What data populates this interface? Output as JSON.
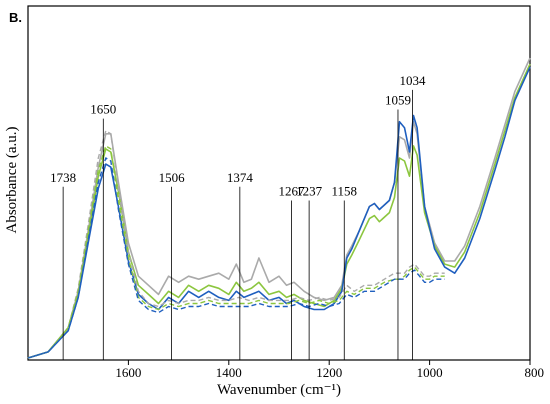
{
  "chart_data": {
    "type": "line",
    "panel_label": "B.",
    "xlabel": "Wavenumber (cm⁻¹)",
    "ylabel": "Absorbance (a.u.)",
    "x_axis_reversed": true,
    "xlim": [
      1800,
      800
    ],
    "ylim": [
      0,
      1.0
    ],
    "x_ticks": [
      1600,
      1400,
      1200,
      1000,
      800
    ],
    "x_tick_labels": [
      "1600",
      "1400",
      "1200",
      "1000",
      "800"
    ],
    "y_ticks_shown": false,
    "grid": false,
    "legend": "none",
    "annotations": [
      {
        "label": "1738",
        "x": 1730,
        "y_top": 0.565
      },
      {
        "label": "1650",
        "x": 1650,
        "y_top": 0.79
      },
      {
        "label": "1506",
        "x": 1514,
        "y_top": 0.565
      },
      {
        "label": "1374",
        "x": 1378,
        "y_top": 0.565
      },
      {
        "label": "1267",
        "x": 1275,
        "y_top": 0.52
      },
      {
        "label": "1237",
        "x": 1240,
        "y_top": 0.52
      },
      {
        "label": "1158",
        "x": 1170,
        "y_top": 0.52
      },
      {
        "label": "1059",
        "x": 1063,
        "y_top": 0.82
      },
      {
        "label": "1034",
        "x": 1034,
        "y_top": 0.885
      }
    ],
    "series": [
      {
        "color": "#aaaaaa",
        "dash": "solid",
        "x": [
          1800,
          1760,
          1720,
          1700,
          1680,
          1660,
          1645,
          1635,
          1620,
          1600,
          1580,
          1560,
          1540,
          1520,
          1500,
          1480,
          1460,
          1440,
          1420,
          1400,
          1385,
          1370,
          1355,
          1340,
          1320,
          1300,
          1285,
          1270,
          1250,
          1230,
          1210,
          1190,
          1175,
          1165,
          1155,
          1140,
          1120,
          1110,
          1100,
          1080,
          1070,
          1060,
          1050,
          1040,
          1032,
          1025,
          1010,
          990,
          970,
          950,
          930,
          900,
          870,
          850,
          830,
          800
        ],
        "y": [
          0.0,
          0.02,
          0.1,
          0.22,
          0.42,
          0.63,
          0.74,
          0.74,
          0.58,
          0.38,
          0.27,
          0.24,
          0.21,
          0.27,
          0.25,
          0.27,
          0.26,
          0.27,
          0.28,
          0.26,
          0.31,
          0.25,
          0.26,
          0.33,
          0.25,
          0.27,
          0.24,
          0.25,
          0.22,
          0.2,
          0.19,
          0.2,
          0.24,
          0.34,
          0.37,
          0.42,
          0.5,
          0.51,
          0.49,
          0.52,
          0.58,
          0.73,
          0.72,
          0.66,
          0.78,
          0.74,
          0.5,
          0.38,
          0.32,
          0.32,
          0.37,
          0.5,
          0.66,
          0.77,
          0.88,
          0.99
        ]
      },
      {
        "color": "#8cc63f",
        "dash": "solid",
        "x": [
          1800,
          1760,
          1720,
          1700,
          1680,
          1660,
          1645,
          1635,
          1620,
          1600,
          1580,
          1560,
          1540,
          1520,
          1500,
          1480,
          1460,
          1440,
          1420,
          1400,
          1385,
          1370,
          1355,
          1340,
          1320,
          1300,
          1285,
          1270,
          1250,
          1230,
          1210,
          1190,
          1175,
          1165,
          1155,
          1140,
          1120,
          1110,
          1100,
          1080,
          1070,
          1060,
          1050,
          1040,
          1032,
          1025,
          1010,
          990,
          970,
          950,
          930,
          900,
          870,
          850,
          830,
          800
        ],
        "y": [
          0.0,
          0.02,
          0.1,
          0.21,
          0.4,
          0.6,
          0.69,
          0.68,
          0.55,
          0.35,
          0.24,
          0.21,
          0.18,
          0.22,
          0.2,
          0.24,
          0.22,
          0.24,
          0.23,
          0.21,
          0.25,
          0.22,
          0.23,
          0.25,
          0.21,
          0.22,
          0.2,
          0.21,
          0.19,
          0.18,
          0.17,
          0.19,
          0.23,
          0.31,
          0.34,
          0.39,
          0.46,
          0.47,
          0.45,
          0.48,
          0.53,
          0.66,
          0.65,
          0.6,
          0.7,
          0.67,
          0.48,
          0.37,
          0.31,
          0.3,
          0.35,
          0.48,
          0.64,
          0.75,
          0.86,
          0.97
        ]
      },
      {
        "color": "#1f5fbf",
        "dash": "solid",
        "x": [
          1800,
          1760,
          1720,
          1700,
          1680,
          1660,
          1645,
          1635,
          1620,
          1600,
          1580,
          1560,
          1540,
          1520,
          1500,
          1480,
          1460,
          1440,
          1420,
          1400,
          1385,
          1370,
          1355,
          1340,
          1320,
          1300,
          1285,
          1270,
          1250,
          1230,
          1210,
          1190,
          1175,
          1165,
          1155,
          1140,
          1120,
          1110,
          1100,
          1080,
          1070,
          1060,
          1050,
          1040,
          1032,
          1025,
          1010,
          990,
          970,
          950,
          930,
          900,
          870,
          850,
          830,
          800
        ],
        "y": [
          0.0,
          0.02,
          0.09,
          0.2,
          0.38,
          0.56,
          0.64,
          0.63,
          0.5,
          0.32,
          0.21,
          0.18,
          0.16,
          0.2,
          0.18,
          0.22,
          0.2,
          0.22,
          0.2,
          0.19,
          0.22,
          0.2,
          0.21,
          0.22,
          0.19,
          0.2,
          0.18,
          0.19,
          0.17,
          0.16,
          0.16,
          0.18,
          0.22,
          0.33,
          0.36,
          0.42,
          0.5,
          0.51,
          0.49,
          0.52,
          0.58,
          0.78,
          0.76,
          0.68,
          0.8,
          0.76,
          0.5,
          0.36,
          0.3,
          0.28,
          0.33,
          0.46,
          0.62,
          0.73,
          0.85,
          0.96
        ]
      },
      {
        "color": "#aaaaaa",
        "dash": "dashed",
        "x": [
          1800,
          1760,
          1720,
          1700,
          1680,
          1660,
          1645,
          1635,
          1620,
          1600,
          1580,
          1560,
          1540,
          1520,
          1500,
          1480,
          1460,
          1440,
          1420,
          1400,
          1380,
          1360,
          1340,
          1320,
          1300,
          1280,
          1260,
          1240,
          1220,
          1200,
          1180,
          1165,
          1150,
          1130,
          1110,
          1090,
          1070,
          1060,
          1050,
          1040,
          1030,
          1020,
          1010,
          1000,
          990,
          980,
          970
        ],
        "y": [
          0.0,
          0.02,
          0.1,
          0.23,
          0.44,
          0.66,
          0.75,
          0.74,
          0.56,
          0.35,
          0.22,
          0.18,
          0.17,
          0.19,
          0.18,
          0.19,
          0.19,
          0.2,
          0.19,
          0.19,
          0.2,
          0.19,
          0.2,
          0.19,
          0.19,
          0.19,
          0.2,
          0.19,
          0.2,
          0.19,
          0.2,
          0.24,
          0.22,
          0.24,
          0.24,
          0.26,
          0.28,
          0.28,
          0.28,
          0.3,
          0.31,
          0.29,
          0.27,
          0.27,
          0.28,
          0.28,
          0.28
        ]
      },
      {
        "color": "#8cc63f",
        "dash": "dashed",
        "x": [
          1800,
          1760,
          1720,
          1700,
          1680,
          1660,
          1645,
          1635,
          1620,
          1600,
          1580,
          1560,
          1540,
          1520,
          1500,
          1480,
          1460,
          1440,
          1420,
          1400,
          1380,
          1360,
          1340,
          1320,
          1300,
          1280,
          1260,
          1240,
          1220,
          1200,
          1180,
          1165,
          1150,
          1130,
          1110,
          1090,
          1070,
          1060,
          1050,
          1040,
          1030,
          1020,
          1010,
          1000,
          990,
          980,
          970
        ],
        "y": [
          0.0,
          0.02,
          0.1,
          0.22,
          0.42,
          0.62,
          0.7,
          0.69,
          0.52,
          0.33,
          0.2,
          0.17,
          0.16,
          0.18,
          0.17,
          0.18,
          0.18,
          0.19,
          0.18,
          0.18,
          0.18,
          0.18,
          0.19,
          0.18,
          0.18,
          0.18,
          0.19,
          0.18,
          0.19,
          0.18,
          0.19,
          0.22,
          0.21,
          0.23,
          0.23,
          0.25,
          0.26,
          0.26,
          0.27,
          0.29,
          0.3,
          0.28,
          0.26,
          0.26,
          0.27,
          0.27,
          0.27
        ]
      },
      {
        "color": "#1f5fbf",
        "dash": "dashed",
        "x": [
          1800,
          1760,
          1720,
          1700,
          1680,
          1660,
          1645,
          1635,
          1620,
          1600,
          1580,
          1560,
          1540,
          1520,
          1500,
          1480,
          1460,
          1440,
          1420,
          1400,
          1380,
          1360,
          1340,
          1320,
          1300,
          1280,
          1260,
          1240,
          1220,
          1200,
          1180,
          1165,
          1150,
          1130,
          1110,
          1090,
          1070,
          1060,
          1050,
          1040,
          1030,
          1020,
          1010,
          1000,
          990,
          980,
          970
        ],
        "y": [
          0.0,
          0.02,
          0.09,
          0.2,
          0.39,
          0.58,
          0.66,
          0.65,
          0.49,
          0.31,
          0.19,
          0.16,
          0.15,
          0.17,
          0.16,
          0.17,
          0.17,
          0.18,
          0.17,
          0.17,
          0.17,
          0.17,
          0.18,
          0.17,
          0.17,
          0.17,
          0.18,
          0.17,
          0.18,
          0.17,
          0.18,
          0.21,
          0.2,
          0.22,
          0.22,
          0.24,
          0.26,
          0.26,
          0.26,
          0.28,
          0.29,
          0.27,
          0.25,
          0.25,
          0.26,
          0.26,
          0.26
        ]
      }
    ]
  }
}
